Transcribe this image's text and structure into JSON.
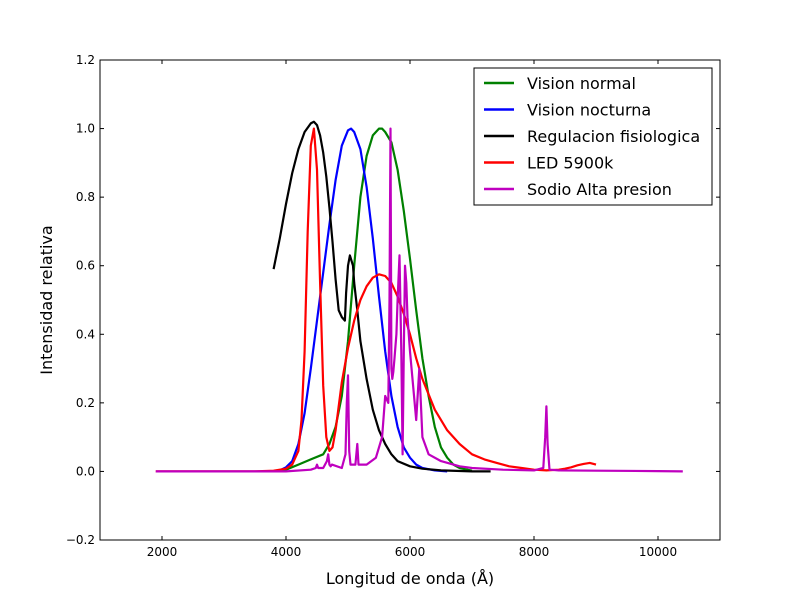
{
  "chart_data": {
    "type": "line",
    "title": "",
    "xlabel": "Longitud de onda (Å)",
    "ylabel": "Intensidad relativa",
    "xlim": [
      1000,
      11000
    ],
    "ylim": [
      -0.2,
      1.2
    ],
    "xticks": [
      "2000",
      "4000",
      "6000",
      "8000",
      "10000"
    ],
    "yticks": [
      "−0.2",
      "0.0",
      "0.2",
      "0.4",
      "0.6",
      "0.8",
      "1.0",
      "1.2"
    ],
    "grid": false,
    "legend_position": "top-right",
    "series": [
      {
        "name": "Vision normal",
        "color": "#008000",
        "x": [
          3800,
          4000,
          4200,
          4400,
          4600,
          4700,
          4800,
          4900,
          5000,
          5100,
          5200,
          5300,
          5400,
          5500,
          5550,
          5600,
          5700,
          5800,
          5900,
          6000,
          6100,
          6200,
          6300,
          6400,
          6500,
          6600,
          6700,
          6800,
          7000
        ],
        "y": [
          0.0,
          0.005,
          0.02,
          0.035,
          0.05,
          0.08,
          0.13,
          0.22,
          0.38,
          0.6,
          0.8,
          0.92,
          0.98,
          1.0,
          1.0,
          0.99,
          0.96,
          0.88,
          0.76,
          0.62,
          0.47,
          0.33,
          0.22,
          0.13,
          0.07,
          0.04,
          0.02,
          0.01,
          0.002
        ]
      },
      {
        "name": "Vision nocturna",
        "color": "#0000ff",
        "x": [
          3800,
          3900,
          4000,
          4100,
          4200,
          4300,
          4400,
          4500,
          4600,
          4700,
          4800,
          4900,
          5000,
          5050,
          5100,
          5200,
          5300,
          5400,
          5500,
          5600,
          5700,
          5800,
          5900,
          6000,
          6100,
          6200,
          6400,
          6600
        ],
        "y": [
          0.0,
          0.003,
          0.012,
          0.03,
          0.08,
          0.17,
          0.3,
          0.44,
          0.58,
          0.72,
          0.85,
          0.95,
          0.995,
          1.0,
          0.99,
          0.94,
          0.83,
          0.68,
          0.51,
          0.35,
          0.22,
          0.13,
          0.07,
          0.04,
          0.02,
          0.01,
          0.003,
          0.0
        ]
      },
      {
        "name": "Regulacion fisiologica",
        "color": "#000000",
        "x": [
          3800,
          3900,
          4000,
          4100,
          4200,
          4300,
          4400,
          4450,
          4500,
          4550,
          4600,
          4650,
          4700,
          4750,
          4800,
          4850,
          4900,
          4950,
          4970,
          5000,
          5030,
          5080,
          5100,
          5150,
          5200,
          5300,
          5400,
          5500,
          5600,
          5700,
          5800,
          6000,
          6200,
          6500,
          7000,
          7300
        ],
        "y": [
          0.59,
          0.68,
          0.78,
          0.87,
          0.94,
          0.99,
          1.015,
          1.02,
          1.01,
          0.98,
          0.93,
          0.86,
          0.77,
          0.67,
          0.56,
          0.47,
          0.45,
          0.44,
          0.52,
          0.6,
          0.63,
          0.6,
          0.55,
          0.47,
          0.38,
          0.27,
          0.18,
          0.12,
          0.08,
          0.05,
          0.03,
          0.015,
          0.008,
          0.003,
          0.0,
          0.0
        ]
      },
      {
        "name": "LED 5900k",
        "color": "#ff0000",
        "x": [
          1900,
          3500,
          3800,
          4000,
          4100,
          4200,
          4250,
          4300,
          4350,
          4400,
          4450,
          4500,
          4550,
          4600,
          4650,
          4700,
          4750,
          4800,
          4850,
          4900,
          5000,
          5100,
          5200,
          5300,
          5400,
          5500,
          5600,
          5700,
          5800,
          5900,
          6000,
          6100,
          6200,
          6400,
          6600,
          6800,
          7000,
          7200,
          7400,
          7600,
          7800,
          8000,
          8200,
          8400,
          8500,
          8600,
          8700,
          8800,
          8900,
          9000
        ],
        "y": [
          0.0,
          0.0,
          0.002,
          0.008,
          0.02,
          0.06,
          0.15,
          0.35,
          0.7,
          0.95,
          1.0,
          0.88,
          0.55,
          0.25,
          0.1,
          0.06,
          0.07,
          0.12,
          0.19,
          0.26,
          0.36,
          0.44,
          0.5,
          0.54,
          0.565,
          0.575,
          0.57,
          0.55,
          0.51,
          0.46,
          0.4,
          0.33,
          0.27,
          0.18,
          0.12,
          0.08,
          0.05,
          0.035,
          0.025,
          0.015,
          0.01,
          0.005,
          0.003,
          0.005,
          0.008,
          0.012,
          0.018,
          0.022,
          0.025,
          0.02
        ]
      },
      {
        "name": "Sodio Alta presion",
        "color": "#bf00bf",
        "x": [
          1900,
          3000,
          4000,
          4400,
          4480,
          4500,
          4520,
          4600,
          4660,
          4680,
          4700,
          4720,
          4740,
          4900,
          4960,
          4980,
          5000,
          5020,
          5040,
          5120,
          5150,
          5170,
          5200,
          5300,
          5450,
          5550,
          5600,
          5650,
          5670,
          5685,
          5700,
          5715,
          5730,
          5750,
          5780,
          5800,
          5830,
          5860,
          5880,
          5900,
          5920,
          5940,
          5960,
          6000,
          6050,
          6100,
          6150,
          6200,
          6300,
          6500,
          6800,
          7000,
          7500,
          8000,
          8150,
          8180,
          8200,
          8220,
          8250,
          8400,
          9000,
          10000,
          10400
        ],
        "y": [
          0.0,
          0.0,
          0.0,
          0.005,
          0.01,
          0.02,
          0.01,
          0.01,
          0.03,
          0.05,
          0.02,
          0.015,
          0.02,
          0.01,
          0.05,
          0.2,
          0.28,
          0.06,
          0.02,
          0.02,
          0.08,
          0.02,
          0.02,
          0.02,
          0.04,
          0.1,
          0.22,
          0.2,
          0.5,
          1.0,
          0.3,
          0.27,
          0.29,
          0.33,
          0.4,
          0.5,
          0.63,
          0.35,
          0.05,
          0.35,
          0.6,
          0.55,
          0.45,
          0.35,
          0.25,
          0.15,
          0.3,
          0.1,
          0.05,
          0.03,
          0.015,
          0.01,
          0.005,
          0.003,
          0.01,
          0.1,
          0.19,
          0.08,
          0.005,
          0.003,
          0.002,
          0.001,
          0.0
        ]
      }
    ]
  }
}
